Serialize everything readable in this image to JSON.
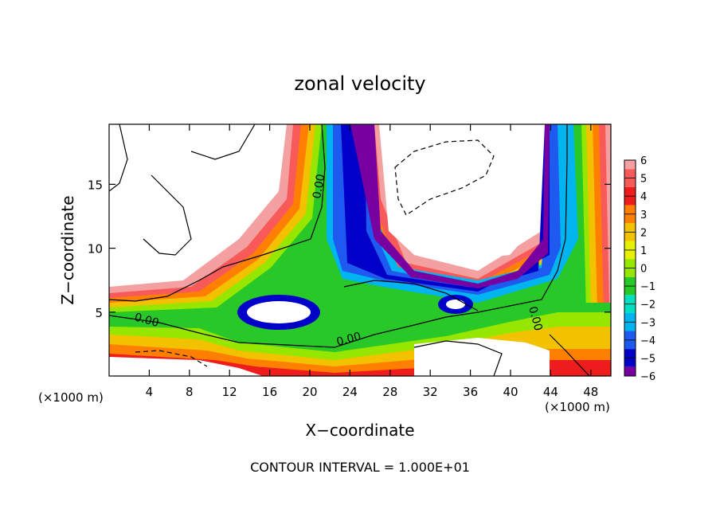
{
  "chart_data": {
    "type": "heatmap",
    "title": "zonal velocity",
    "xlabel": "X−coordinate",
    "ylabel": "Z−coordinate",
    "x_units_left": "(×1000 m)",
    "x_units_right": "(×1000 m)",
    "xlim": [
      0,
      50
    ],
    "ylim": [
      0,
      19.7
    ],
    "x_ticks": [
      4,
      8,
      12,
      16,
      20,
      24,
      28,
      32,
      36,
      40,
      44,
      48
    ],
    "y_ticks": [
      5,
      10,
      15
    ],
    "colorbar": {
      "ticks": [
        "6",
        "5",
        "4",
        "3",
        "2",
        "1",
        "0",
        "−1",
        "−2",
        "−3",
        "−4",
        "−5",
        "−6"
      ],
      "values": [
        6,
        5,
        4,
        3,
        2,
        1,
        0,
        -1,
        -2,
        -3,
        -4,
        -5,
        -6
      ],
      "colors": [
        "#f4a0a0",
        "#f85a5a",
        "#ee1c1c",
        "#ff8000",
        "#f2c200",
        "#e6f000",
        "#96e600",
        "#28c828",
        "#00e0c0",
        "#00b4f0",
        "#1e5af0",
        "#0000c8",
        "#7800a0"
      ]
    },
    "contour_labels": [
      "0.00",
      "0.00",
      "0.00",
      "0.00"
    ],
    "footer": "CONTOUR INTERVAL = 1.000E+01"
  }
}
